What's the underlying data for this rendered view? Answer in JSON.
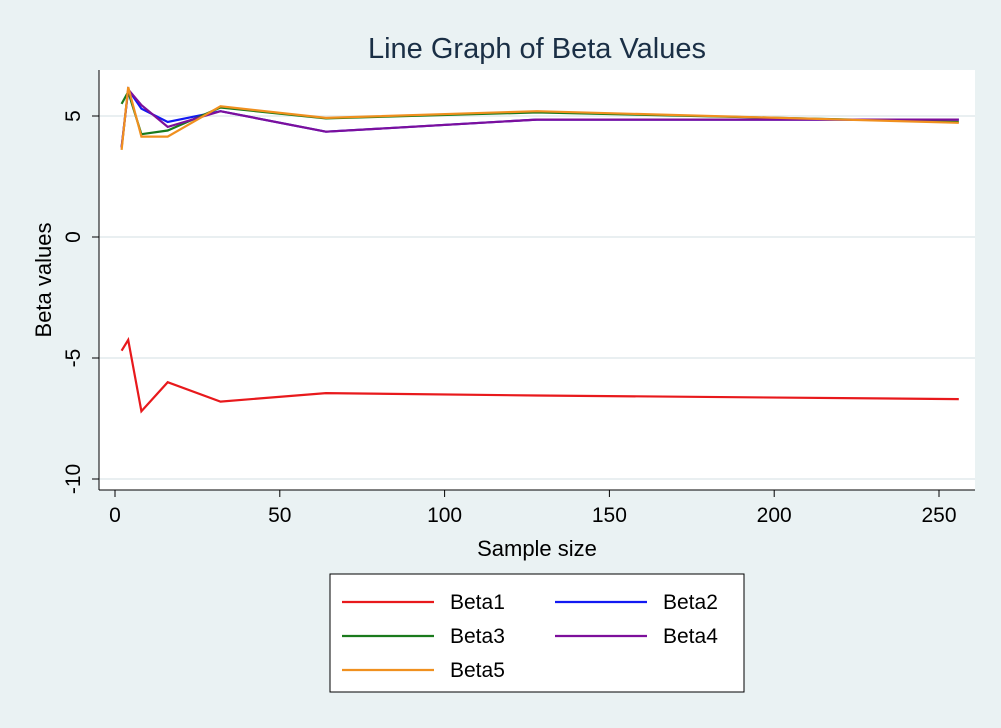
{
  "chart_data": {
    "type": "line",
    "title": "Line Graph of Beta Values",
    "xlabel": "Sample size",
    "ylabel": "Beta values",
    "xlim": [
      0,
      260
    ],
    "ylim": [
      -10,
      6.9
    ],
    "xticks": [
      0,
      50,
      100,
      150,
      200,
      250
    ],
    "xtick_labels": [
      "0",
      "50",
      "100",
      "150",
      "200",
      "250"
    ],
    "yticks": [
      -10,
      -5,
      0,
      5
    ],
    "ytick_labels": [
      "-10",
      "-5",
      "0",
      "5"
    ],
    "grid": true,
    "legend_position": "bottom",
    "x": [
      2,
      4,
      8,
      16,
      32,
      64,
      128,
      256
    ],
    "series": [
      {
        "name": "Beta1",
        "color": "#e8191c",
        "values": [
          -4.7,
          -4.25,
          -7.2,
          -6.0,
          -6.8,
          -6.45,
          -6.55,
          -6.7
        ]
      },
      {
        "name": "Beta2",
        "color": "#1219f2",
        "values": [
          3.7,
          6.1,
          5.3,
          4.75,
          5.2,
          4.35,
          4.85,
          4.85
        ]
      },
      {
        "name": "Beta3",
        "color": "#1a7a1c",
        "values": [
          5.5,
          6.0,
          4.25,
          4.4,
          5.35,
          4.9,
          5.15,
          4.75
        ]
      },
      {
        "name": "Beta4",
        "color": "#7d0f9b",
        "values": [
          3.7,
          6.1,
          5.45,
          4.55,
          5.2,
          4.35,
          4.85,
          4.85
        ]
      },
      {
        "name": "Beta5",
        "color": "#f0901f",
        "values": [
          3.6,
          6.2,
          4.15,
          4.15,
          5.4,
          4.92,
          5.2,
          4.72
        ]
      }
    ]
  }
}
